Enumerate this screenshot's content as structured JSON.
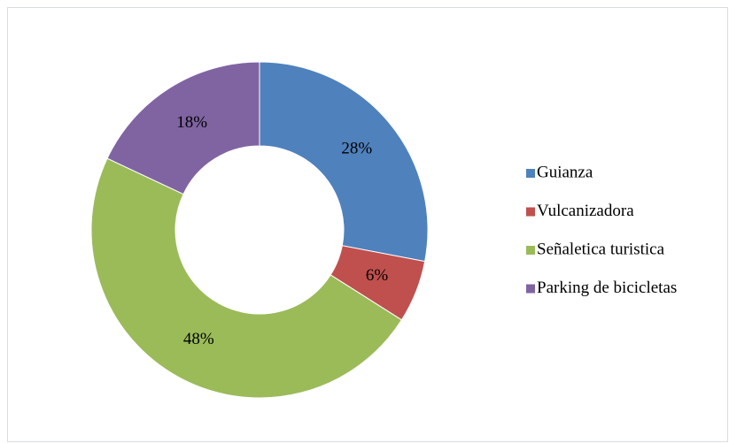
{
  "chart_data": {
    "type": "donut",
    "categories": [
      "Guianza",
      "Vulcanizadora",
      "Señaletica turistica",
      "Parking de bicicletas"
    ],
    "values": [
      28,
      6,
      48,
      18
    ],
    "value_labels": [
      "28%",
      "6%",
      "48%",
      "18%"
    ],
    "colors": [
      "#4f81bd",
      "#c0504d",
      "#9bbb59",
      "#8064a2"
    ],
    "legend": "right"
  }
}
